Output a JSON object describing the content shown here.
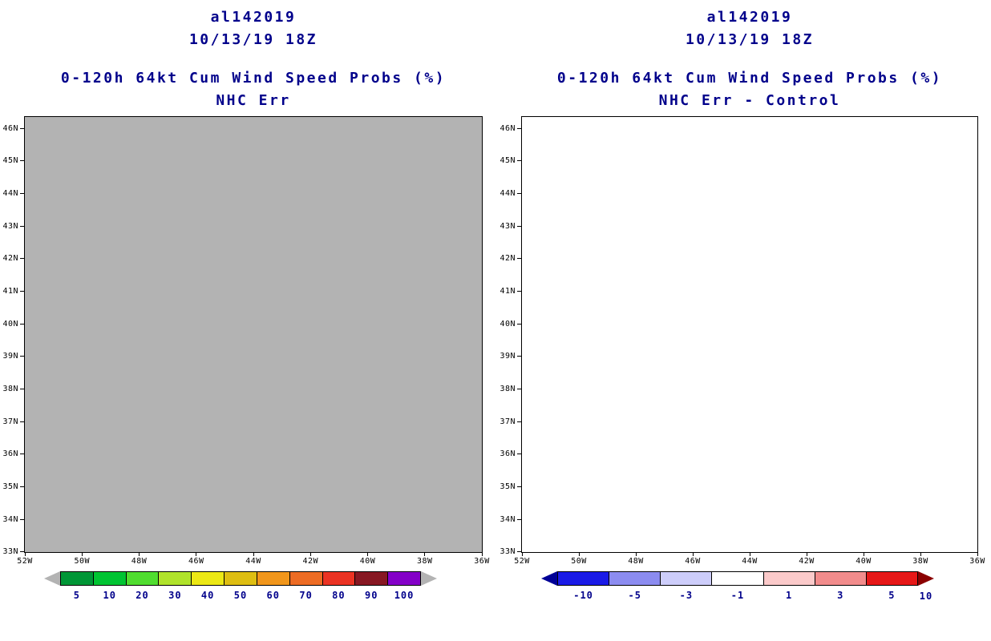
{
  "chart_data": [
    {
      "type": "heatmap",
      "title": "al142019",
      "init_time": "10/13/19 18Z",
      "subtitle": "0-120h 64kt Cum Wind Speed Probs (%)",
      "series_label": "NHC Err",
      "x_ticks": [
        "52W",
        "50W",
        "48W",
        "46W",
        "44W",
        "42W",
        "40W",
        "38W",
        "36W"
      ],
      "y_ticks": [
        "46N",
        "45N",
        "44N",
        "43N",
        "42N",
        "41N",
        "40N",
        "39N",
        "38N",
        "37N",
        "36N",
        "35N",
        "34N",
        "33N"
      ],
      "field": "uniform",
      "field_color": "#b3b3b3",
      "colorbar_levels": [
        5,
        10,
        20,
        30,
        40,
        50,
        60,
        70,
        80,
        90,
        100
      ],
      "colorbar_colors": [
        "#009636",
        "#00c432",
        "#50dd2f",
        "#b0e32b",
        "#ece815",
        "#debe12",
        "#f1961b",
        "#ed6c24",
        "#eb3323",
        "#871722",
        "#8400c8"
      ],
      "under_color": "#b3b3b3",
      "over_color": "#b3b3b3",
      "legend_position": "bottom",
      "grid": false
    },
    {
      "type": "heatmap",
      "title": "al142019",
      "init_time": "10/13/19 18Z",
      "subtitle": "0-120h 64kt Cum Wind Speed Probs (%)",
      "series_label": "NHC Err - Control",
      "x_ticks": [
        "52W",
        "50W",
        "48W",
        "46W",
        "44W",
        "42W",
        "40W",
        "38W",
        "36W"
      ],
      "y_ticks": [
        "46N",
        "45N",
        "44N",
        "43N",
        "42N",
        "41N",
        "40N",
        "39N",
        "38N",
        "37N",
        "36N",
        "35N",
        "34N",
        "33N"
      ],
      "field": "uniform",
      "field_color": "#ffffff",
      "colorbar_levels": [
        -10,
        -5,
        -3,
        -1,
        1,
        3,
        5,
        10
      ],
      "colorbar_colors": [
        "#1a1ae6",
        "#8c8cf0",
        "#cdcdfa",
        "#ffffff",
        "#fbcaca",
        "#f28c8c",
        "#e61717"
      ],
      "under_color": "#000096",
      "over_color": "#8b0000",
      "legend_position": "bottom",
      "grid": false
    }
  ],
  "panels": [
    {
      "title_line1": "al142019",
      "title_line2": "10/13/19 18Z",
      "subtitle_line1": "0-120h 64kt Cum Wind Speed Probs (%)",
      "subtitle_line2": "NHC Err",
      "map_fill": "#b3b3b3",
      "lat_labels": [
        "46N",
        "45N",
        "44N",
        "43N",
        "42N",
        "41N",
        "40N",
        "39N",
        "38N",
        "37N",
        "36N",
        "35N",
        "34N",
        "33N"
      ],
      "lon_labels": [
        "52W",
        "50W",
        "48W",
        "46W",
        "44W",
        "42W",
        "40W",
        "38W",
        "36W"
      ],
      "colorbar": {
        "left_cap_color": "#b3b3b3",
        "right_cap_color": "#b3b3b3",
        "right_cap_label": "",
        "cells": [
          {
            "color": "#009636",
            "label": "5"
          },
          {
            "color": "#00c432",
            "label": "10"
          },
          {
            "color": "#50dd2f",
            "label": "20"
          },
          {
            "color": "#b0e32b",
            "label": "30"
          },
          {
            "color": "#ece815",
            "label": "40"
          },
          {
            "color": "#debe12",
            "label": "50"
          },
          {
            "color": "#f1961b",
            "label": "60"
          },
          {
            "color": "#ed6c24",
            "label": "70"
          },
          {
            "color": "#eb3323",
            "label": "80"
          },
          {
            "color": "#871722",
            "label": "90"
          },
          {
            "color": "#8400c8",
            "label": "100"
          }
        ]
      }
    },
    {
      "title_line1": "al142019",
      "title_line2": "10/13/19 18Z",
      "subtitle_line1": "0-120h 64kt Cum Wind Speed Probs (%)",
      "subtitle_line2": "NHC Err - Control",
      "map_fill": "#ffffff",
      "lat_labels": [
        "46N",
        "45N",
        "44N",
        "43N",
        "42N",
        "41N",
        "40N",
        "39N",
        "38N",
        "37N",
        "36N",
        "35N",
        "34N",
        "33N"
      ],
      "lon_labels": [
        "52W",
        "50W",
        "48W",
        "46W",
        "44W",
        "42W",
        "40W",
        "38W",
        "36W"
      ],
      "colorbar": {
        "left_cap_color": "#000096",
        "right_cap_color": "#8b0000",
        "right_cap_label": "10",
        "cells": [
          {
            "color": "#1a1ae6",
            "label": "-10"
          },
          {
            "color": "#8c8cf0",
            "label": "-5"
          },
          {
            "color": "#cdcdfa",
            "label": "-3"
          },
          {
            "color": "#ffffff",
            "label": "-1"
          },
          {
            "color": "#fbcaca",
            "label": "1"
          },
          {
            "color": "#f28c8c",
            "label": "3"
          },
          {
            "color": "#e61717",
            "label": "5"
          }
        ]
      }
    }
  ]
}
